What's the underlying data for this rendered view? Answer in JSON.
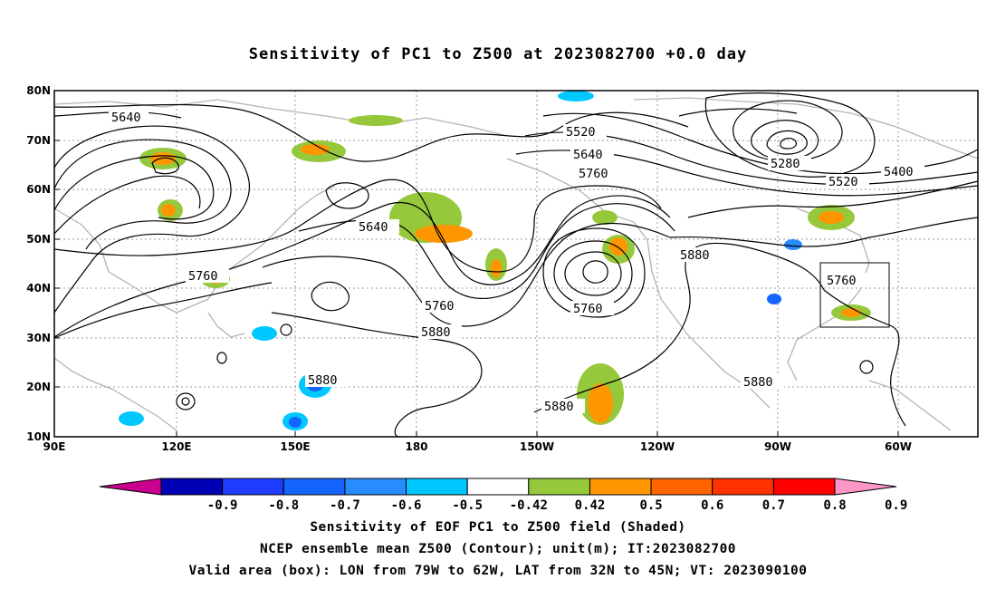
{
  "title": "Sensitivity of PC1 to Z500 at 2023082700 +0.0 day",
  "map": {
    "lat_labels": [
      "80N",
      "70N",
      "60N",
      "50N",
      "40N",
      "30N",
      "20N",
      "10N"
    ],
    "lon_labels": [
      "90E",
      "120E",
      "150E",
      "180",
      "150W",
      "120W",
      "90W",
      "60W"
    ],
    "contour_labels": [
      "5640",
      "5520",
      "5640",
      "5760",
      "5280",
      "5520",
      "5400",
      "5640",
      "5880",
      "5760",
      "5760",
      "5760",
      "5880",
      "5760",
      "5880",
      "5880",
      "5880"
    ],
    "box_area": {
      "lon_from": "79W",
      "lon_to": "62W",
      "lat_from": "32N",
      "lat_to": "45N"
    },
    "colors": {
      "contour": "#000000",
      "coast": "#b4b4b4",
      "grid": "#9a9a9a"
    }
  },
  "colorbar": {
    "labels": [
      "-0.9",
      "-0.8",
      "-0.7",
      "-0.6",
      "-0.5",
      "-0.42",
      "0.42",
      "0.5",
      "0.6",
      "0.7",
      "0.8",
      "0.9"
    ],
    "colors": [
      "#c8008c",
      "#0000b4",
      "#1e3cff",
      "#1464ff",
      "#288cff",
      "#00c8ff",
      "#ffffff",
      "#96c83c",
      "#ff9600",
      "#ff6400",
      "#ff3200",
      "#ff0000",
      "#ff96c8"
    ]
  },
  "captions": {
    "line1": "Sensitivity of EOF PC1 to Z500 field (Shaded)",
    "line2": "NCEP ensemble mean Z500 (Contour); unit(m); IT:2023082700",
    "line3": "Valid area (box): LON from 79W to 62W, LAT from 32N to 45N; VT: 2023090100"
  }
}
